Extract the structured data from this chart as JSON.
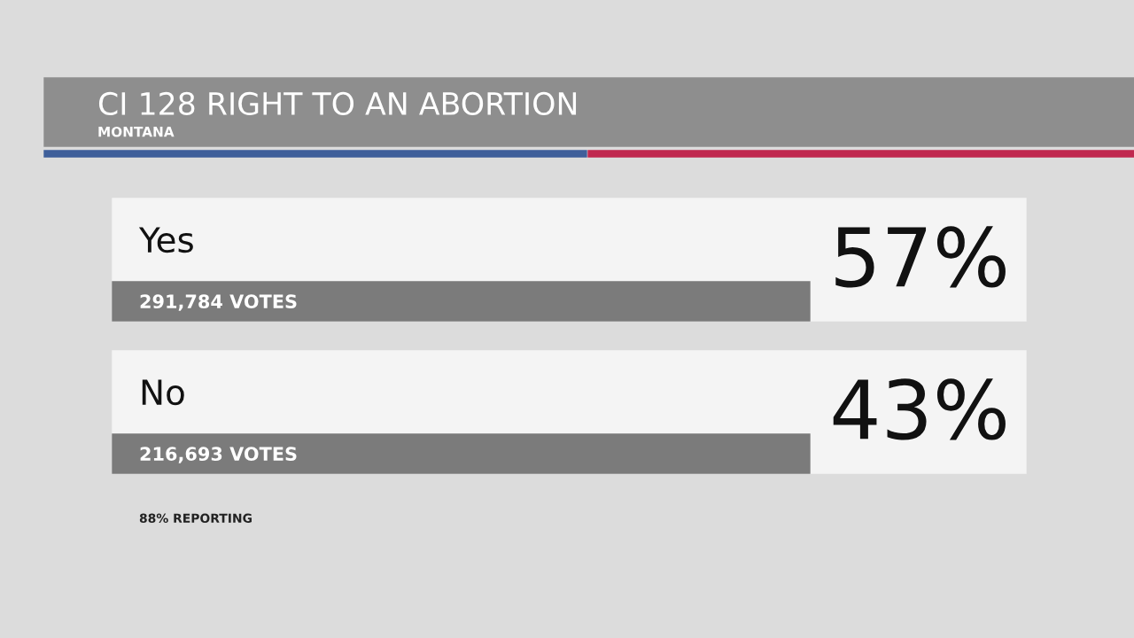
{
  "chart_data": {
    "type": "other",
    "title": "CI 128 RIGHT TO AN ABORTION",
    "subtitle": "MONTANA",
    "categories": [
      "Yes",
      "No"
    ],
    "values": [
      57,
      43
    ],
    "value_labels": [
      "57%",
      "43%"
    ],
    "annotations": [
      "291,784 VOTES",
      "216,693 VOTES",
      "88% REPORTING"
    ]
  }
}
